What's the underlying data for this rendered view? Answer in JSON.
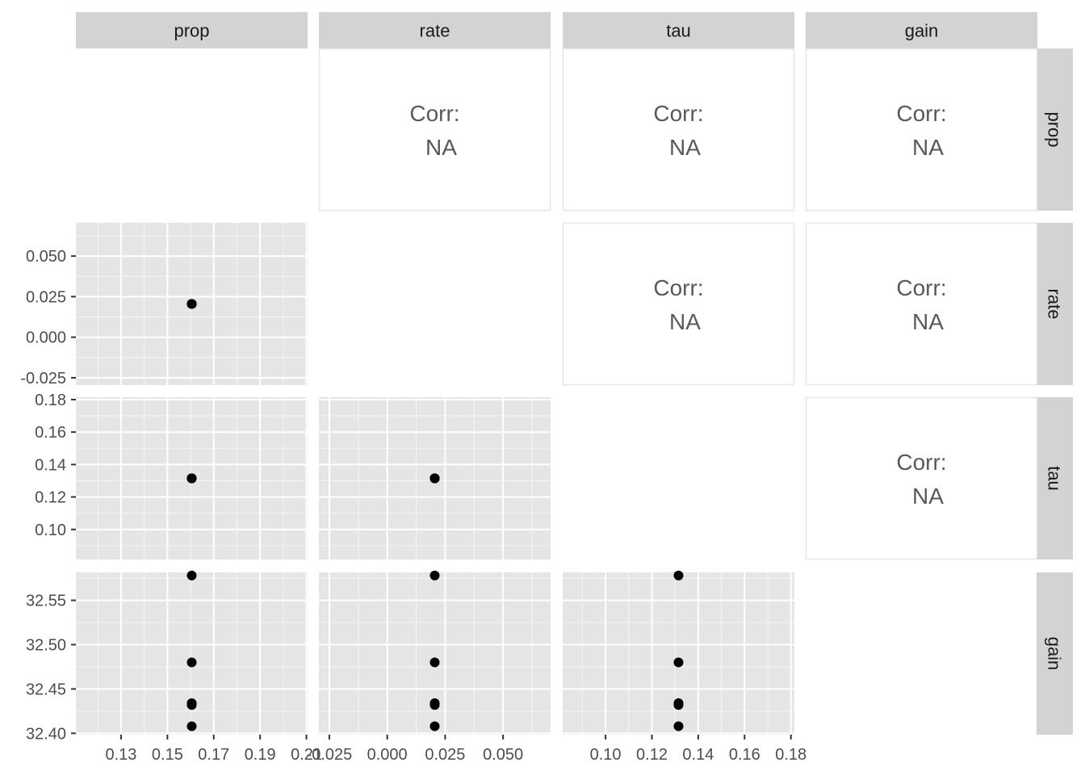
{
  "chart_data": {
    "type": "scatter",
    "title": "",
    "variables": [
      "prop",
      "rate",
      "tau",
      "gain"
    ],
    "corr_label": "Corr:",
    "corr_value": "NA",
    "axes": {
      "prop": {
        "range": [
          0.1105,
          0.2105
        ],
        "ticks": [
          0.13,
          0.15,
          0.17,
          0.19,
          0.21
        ],
        "tick_labels": [
          "0.13",
          "0.15",
          "0.17",
          "0.19",
          "0.21"
        ]
      },
      "rate": {
        "range": [
          -0.0295,
          0.0705
        ],
        "ticks": [
          -0.025,
          0.0,
          0.025,
          0.05
        ],
        "tick_labels": [
          "-0.025",
          "0.000",
          "0.025",
          "0.050"
        ]
      },
      "tau": {
        "range": [
          0.0815,
          0.1815
        ],
        "ticks": [
          0.1,
          0.12,
          0.14,
          0.16,
          0.18
        ],
        "tick_labels": [
          "0.10",
          "0.12",
          "0.14",
          "0.16",
          "0.18"
        ]
      },
      "gain": {
        "range": [
          32.3985,
          32.5815
        ],
        "ticks": [
          32.4,
          32.45,
          32.5,
          32.55
        ],
        "tick_labels": [
          "32.40",
          "32.45",
          "32.50",
          "32.55"
        ]
      }
    },
    "points": [
      {
        "prop": 0.1605,
        "rate": 0.0205,
        "tau": 0.1315,
        "gain": 32.408
      },
      {
        "prop": 0.1605,
        "rate": 0.0205,
        "tau": 0.1315,
        "gain": 32.432
      },
      {
        "prop": 0.1605,
        "rate": 0.0205,
        "tau": 0.1315,
        "gain": 32.434
      },
      {
        "prop": 0.1605,
        "rate": 0.0205,
        "tau": 0.1315,
        "gain": 32.48
      },
      {
        "prop": 0.1605,
        "rate": 0.0205,
        "tau": 0.1315,
        "gain": 32.578
      }
    ]
  },
  "colors": {
    "panel_bg": "#e5e5e5",
    "strip_bg": "#d3d3d3",
    "grid_major": "#ffffff",
    "point": "#000000"
  }
}
